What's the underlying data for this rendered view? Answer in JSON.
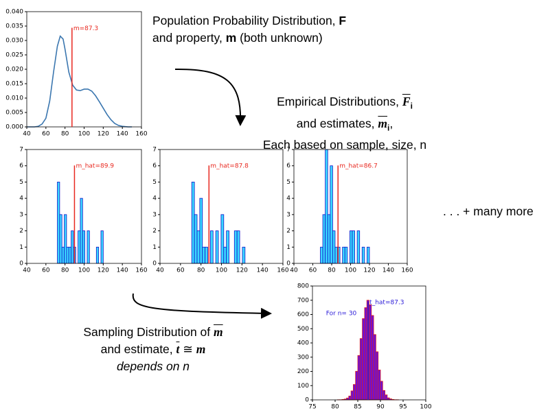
{
  "chart_data": [
    {
      "type": "line",
      "color": "#3a76af",
      "x": [
        40,
        48,
        52,
        56,
        60,
        64,
        68,
        72,
        75,
        78,
        80,
        84,
        88,
        92,
        96,
        100,
        104,
        108,
        112,
        116,
        120,
        124,
        128,
        132,
        136,
        140,
        146,
        150
      ],
      "values": [
        0,
        0,
        0.0002,
        0.001,
        0.003,
        0.009,
        0.019,
        0.028,
        0.0315,
        0.0305,
        0.027,
        0.019,
        0.0145,
        0.0128,
        0.0126,
        0.0131,
        0.0131,
        0.0124,
        0.0108,
        0.0087,
        0.0065,
        0.0043,
        0.0025,
        0.0012,
        0.0005,
        0.0002,
        0,
        0
      ],
      "xlim": [
        40,
        160
      ],
      "xticks": [
        40,
        60,
        80,
        100,
        120,
        140,
        160
      ],
      "ylim": [
        0,
        0.04
      ],
      "yticks": [
        {
          "value": 0,
          "label": "0.000"
        },
        {
          "value": 0.005,
          "label": "0.005"
        },
        {
          "value": 0.01,
          "label": "0.010"
        },
        {
          "value": 0.015,
          "label": "0.015"
        },
        {
          "value": 0.02,
          "label": "0.020"
        },
        {
          "value": 0.025,
          "label": "0.025"
        },
        {
          "value": 0.03,
          "label": "0.030"
        },
        {
          "value": 0.035,
          "label": "0.035"
        },
        {
          "value": 0.04,
          "label": "0.040"
        }
      ],
      "vline": {
        "value": 87.3,
        "label": "m=87.3",
        "color": "#e8271e"
      }
    },
    {
      "type": "histogram",
      "color": "#3ad8ff",
      "edgecolor": "#1010c8",
      "bins": [
        72,
        74.4,
        76.8,
        79.2,
        81.6,
        84,
        86.4,
        88.8,
        91.2,
        93.6,
        96,
        98.4,
        100.8,
        103.2,
        105.6,
        108,
        110.4,
        112.8,
        115.2,
        117.6,
        120
      ],
      "values": [
        5,
        3,
        1,
        3,
        1,
        1,
        2,
        1,
        0,
        2,
        4,
        2,
        0,
        2,
        0,
        0,
        0,
        1,
        0,
        2
      ],
      "xlim": [
        40,
        160
      ],
      "xticks": [
        40,
        60,
        80,
        100,
        120,
        140,
        160
      ],
      "ylim": [
        0,
        7
      ],
      "yticks": [
        0,
        1,
        2,
        3,
        4,
        5,
        6,
        7
      ],
      "vline": {
        "value": 89.9,
        "label": "m_hat=89.9",
        "color": "#e8271e"
      }
    },
    {
      "type": "histogram",
      "color": "#3ad8ff",
      "edgecolor": "#1010c8",
      "bins": [
        71,
        73.6,
        76.2,
        78.8,
        81.4,
        84,
        86.6,
        89.2,
        91.8,
        94.4,
        97,
        99.6,
        102.2,
        104.8,
        107.4,
        110,
        112.6,
        115.2,
        117.8,
        120.4,
        123
      ],
      "values": [
        5,
        3,
        2,
        4,
        1,
        1,
        0,
        2,
        0,
        2,
        0,
        3,
        1,
        2,
        0,
        0,
        2,
        2,
        0,
        1
      ],
      "xlim": [
        40,
        160
      ],
      "xticks": [
        40,
        60,
        80,
        100,
        120,
        140,
        160
      ],
      "ylim": [
        0,
        7
      ],
      "yticks": [
        0,
        1,
        2,
        3,
        4,
        5,
        6,
        7
      ],
      "vline": {
        "value": 87.8,
        "label": "m_hat=87.8",
        "color": "#e8271e"
      }
    },
    {
      "type": "histogram",
      "color": "#3ad8ff",
      "edgecolor": "#1010c8",
      "bins": [
        68,
        70.6,
        73.2,
        75.8,
        78.4,
        81,
        83.6,
        86.2,
        88.8,
        91.4,
        94,
        96.6,
        99.2,
        101.8,
        104.4,
        107,
        109.6,
        112.2,
        114.8,
        117.4,
        120
      ],
      "values": [
        1,
        3,
        7,
        3,
        6,
        2,
        1,
        1,
        0,
        1,
        1,
        0,
        2,
        2,
        0,
        2,
        0,
        1,
        0,
        1
      ],
      "xlim": [
        40,
        160
      ],
      "xticks": [
        40,
        60,
        80,
        100,
        120,
        140,
        160
      ],
      "ylim": [
        0,
        7
      ],
      "yticks": [
        0,
        1,
        2,
        3,
        4,
        5,
        6,
        7
      ],
      "vline": {
        "value": 86.7,
        "label": "m_hat=86.7",
        "color": "#e8271e"
      }
    },
    {
      "type": "histogram",
      "color": "#6a10d8",
      "edgecolor": "#e02020",
      "bins": [
        80,
        80.5,
        81,
        81.5,
        82,
        82.5,
        83,
        83.5,
        84,
        84.5,
        85,
        85.5,
        86,
        86.5,
        87,
        87.5,
        88,
        88.5,
        89,
        89.5,
        90,
        90.5,
        91,
        91.5,
        92,
        92.5,
        93,
        93.5,
        94
      ],
      "values": [
        0,
        1,
        1,
        3,
        6,
        13,
        27,
        63,
        108,
        201,
        312,
        431,
        571,
        648,
        700,
        668,
        593,
        459,
        338,
        210,
        131,
        66,
        35,
        14,
        7,
        3,
        1,
        1
      ],
      "xlim": [
        75,
        100
      ],
      "xticks": [
        75,
        80,
        85,
        90,
        95,
        100
      ],
      "ylim": [
        0,
        800
      ],
      "yticks": [
        0,
        100,
        200,
        300,
        400,
        500,
        600,
        700,
        800
      ],
      "vline": {
        "value": 87.3,
        "label": "t_hat=87.3",
        "color": "#2a1ad8"
      },
      "annotation": "For n= 30",
      "annotation_color": "#2a1ad8"
    }
  ],
  "captions": {
    "population": {
      "line1": "Population Probability Distribution, ",
      "F": "F",
      "line2": "and property, ",
      "m": "m",
      "rest": " (both unknown)"
    },
    "empirical": {
      "line1": "Empirical Distributions, ",
      "F": "F",
      "sub1": "i",
      "line2": "and estimates, ",
      "m": "m",
      "sub2": "i",
      "comma": ",",
      "line3": "Each based on sample, size, n"
    },
    "more": ". . . + many more",
    "sampling": {
      "line1": "Sampling Distribution of ",
      "m": "m",
      "line2": "and estimate, ",
      "t": "t",
      "approx": " ≅ ",
      "m2": "m",
      "line3": "depends on n"
    }
  }
}
